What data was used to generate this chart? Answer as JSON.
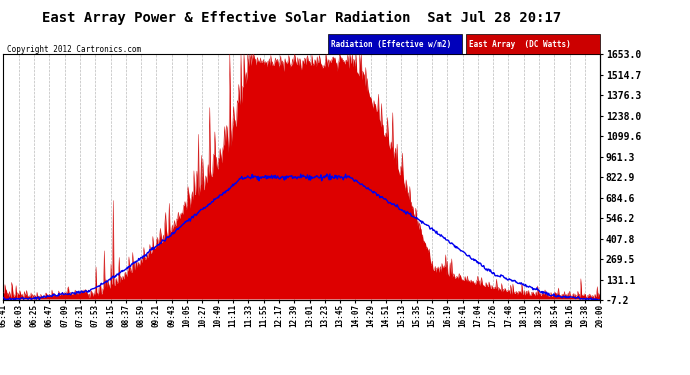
{
  "title": "East Array Power & Effective Solar Radiation  Sat Jul 28 20:17",
  "copyright": "Copyright 2012 Cartronics.com",
  "legend_labels": [
    "Radiation (Effective w/m2)",
    "East Array  (DC Watts)"
  ],
  "legend_colors": [
    "#0000ff",
    "#cc0000"
  ],
  "yticks_right": [
    -7.2,
    131.1,
    269.5,
    407.8,
    546.2,
    684.6,
    822.9,
    961.3,
    1099.6,
    1238.0,
    1376.3,
    1514.7,
    1653.0
  ],
  "ymin": -7.2,
  "ymax": 1653.0,
  "background_color": "#ffffff",
  "plot_bg_color": "#ffffff",
  "grid_color": "#aaaaaa",
  "x_times": [
    "05:41",
    "06:03",
    "06:25",
    "06:47",
    "07:09",
    "07:31",
    "07:53",
    "08:15",
    "08:37",
    "08:59",
    "09:21",
    "09:43",
    "10:05",
    "10:27",
    "10:49",
    "11:11",
    "11:33",
    "11:55",
    "12:17",
    "12:39",
    "13:01",
    "13:23",
    "13:45",
    "14:07",
    "14:29",
    "14:51",
    "15:13",
    "15:35",
    "15:57",
    "16:19",
    "16:41",
    "17:04",
    "17:26",
    "17:48",
    "18:10",
    "18:32",
    "18:54",
    "19:16",
    "19:38",
    "20:00"
  ]
}
